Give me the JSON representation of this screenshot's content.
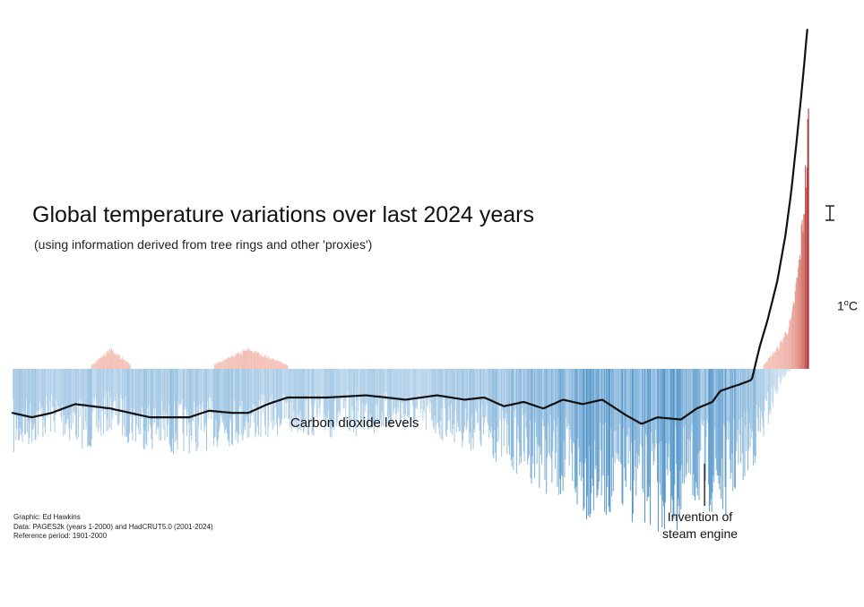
{
  "title": "Global temperature variations over last 2024 years",
  "subtitle": "(using information derived from tree rings and other 'proxies')",
  "credits": {
    "graphic": "Graphic: Ed Hawkins",
    "data": "Data: PAGES2k (years 1-2000) and HadCRUT5.0 (2001-2024)",
    "reference": "Reference period: 1901-2000"
  },
  "annotations": {
    "co2": "Carbon dioxide levels",
    "steam_line1": "Invention of",
    "steam_line2": "steam engine"
  },
  "scale_bar": {
    "value": "1",
    "unit_sup": "o",
    "unit": "C",
    "span_degC": 1.0
  },
  "colors": {
    "cool": "#4a90c8",
    "cool_light": "#b9d6ec",
    "warm": "#e8745a",
    "warm_dark": "#9e0f12",
    "co2_line": "#111111"
  },
  "chart_data": {
    "type": "bar",
    "x_range": [
      1,
      2024
    ],
    "baseline_degC": 0,
    "y_range_degC": [
      -0.9,
      1.8
    ],
    "reference_period": "1901-2000",
    "grid": false,
    "legend": "none",
    "temperature_anomaly_envelope_degC": [
      {
        "year": 1,
        "min": -0.4,
        "max": 0.0
      },
      {
        "year": 100,
        "min": -0.3,
        "max": 0.02
      },
      {
        "year": 200,
        "min": -0.38,
        "max": 0.02
      },
      {
        "year": 250,
        "min": -0.28,
        "max": 0.1
      },
      {
        "year": 300,
        "min": -0.35,
        "max": 0.02
      },
      {
        "year": 400,
        "min": -0.4,
        "max": 0.0
      },
      {
        "year": 500,
        "min": -0.37,
        "max": 0.01
      },
      {
        "year": 600,
        "min": -0.34,
        "max": 0.1
      },
      {
        "year": 700,
        "min": -0.3,
        "max": 0.02
      },
      {
        "year": 800,
        "min": -0.32,
        "max": 0.0
      },
      {
        "year": 900,
        "min": -0.3,
        "max": 0.0
      },
      {
        "year": 1000,
        "min": -0.29,
        "max": 0.0
      },
      {
        "year": 1100,
        "min": -0.33,
        "max": 0.0
      },
      {
        "year": 1200,
        "min": -0.4,
        "max": 0.0
      },
      {
        "year": 1300,
        "min": -0.5,
        "max": 0.0
      },
      {
        "year": 1400,
        "min": -0.62,
        "max": 0.0
      },
      {
        "year": 1450,
        "min": -0.7,
        "max": 0.0
      },
      {
        "year": 1500,
        "min": -0.68,
        "max": 0.0
      },
      {
        "year": 1600,
        "min": -0.72,
        "max": 0.0
      },
      {
        "year": 1650,
        "min": -0.76,
        "max": 0.0
      },
      {
        "year": 1700,
        "min": -0.75,
        "max": 0.0
      },
      {
        "year": 1750,
        "min": -0.62,
        "max": 0.0
      },
      {
        "year": 1800,
        "min": -0.72,
        "max": 0.0
      },
      {
        "year": 1850,
        "min": -0.55,
        "max": 0.0
      },
      {
        "year": 1900,
        "min": -0.4,
        "max": 0.0
      },
      {
        "year": 1950,
        "min": -0.08,
        "max": 0.12
      },
      {
        "year": 1980,
        "min": 0.0,
        "max": 0.25
      },
      {
        "year": 2000,
        "min": 0.0,
        "max": 0.55
      },
      {
        "year": 2010,
        "min": 0.0,
        "max": 0.8
      },
      {
        "year": 2020,
        "min": 0.0,
        "max": 1.12
      },
      {
        "year": 2024,
        "min": 0.0,
        "max": 1.33
      }
    ],
    "series": [
      {
        "name": "Carbon dioxide levels",
        "points": [
          {
            "year": 1,
            "value": -0.2
          },
          {
            "year": 50,
            "value": -0.22
          },
          {
            "year": 100,
            "value": -0.2
          },
          {
            "year": 160,
            "value": -0.16
          },
          {
            "year": 250,
            "value": -0.18
          },
          {
            "year": 350,
            "value": -0.22
          },
          {
            "year": 450,
            "value": -0.22
          },
          {
            "year": 500,
            "value": -0.19
          },
          {
            "year": 560,
            "value": -0.2
          },
          {
            "year": 600,
            "value": -0.2
          },
          {
            "year": 650,
            "value": -0.16
          },
          {
            "year": 700,
            "value": -0.13
          },
          {
            "year": 800,
            "value": -0.13
          },
          {
            "year": 900,
            "value": -0.12
          },
          {
            "year": 1000,
            "value": -0.14
          },
          {
            "year": 1080,
            "value": -0.12
          },
          {
            "year": 1150,
            "value": -0.14
          },
          {
            "year": 1200,
            "value": -0.13
          },
          {
            "year": 1250,
            "value": -0.17
          },
          {
            "year": 1300,
            "value": -0.15
          },
          {
            "year": 1350,
            "value": -0.18
          },
          {
            "year": 1400,
            "value": -0.14
          },
          {
            "year": 1450,
            "value": -0.16
          },
          {
            "year": 1500,
            "value": -0.14
          },
          {
            "year": 1560,
            "value": -0.21
          },
          {
            "year": 1600,
            "value": -0.25
          },
          {
            "year": 1640,
            "value": -0.22
          },
          {
            "year": 1700,
            "value": -0.23
          },
          {
            "year": 1740,
            "value": -0.18
          },
          {
            "year": 1780,
            "value": -0.15
          },
          {
            "year": 1800,
            "value": -0.1
          },
          {
            "year": 1850,
            "value": -0.07
          },
          {
            "year": 1880,
            "value": -0.05
          },
          {
            "year": 1900,
            "value": 0.1
          },
          {
            "year": 1920,
            "value": 0.22
          },
          {
            "year": 1945,
            "value": 0.4
          },
          {
            "year": 1965,
            "value": 0.6
          },
          {
            "year": 1980,
            "value": 0.8
          },
          {
            "year": 1995,
            "value": 1.05
          },
          {
            "year": 2010,
            "value": 1.32
          },
          {
            "year": 2024,
            "value": 1.6
          }
        ]
      }
    ],
    "annotation_marker_year": 1760
  }
}
